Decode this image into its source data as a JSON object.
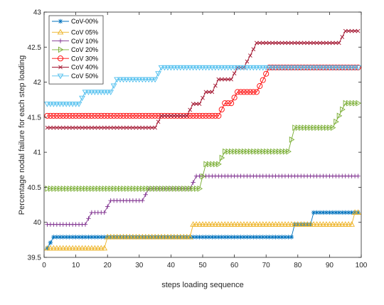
{
  "chart_data": {
    "type": "line",
    "xlabel": "steps loading sequence",
    "ylabel": "Percentage  nodal failure for each step loading",
    "xlim": [
      0,
      100
    ],
    "ylim": [
      39.5,
      43
    ],
    "xticks": [
      "0",
      "10",
      "20",
      "30",
      "40",
      "50",
      "60",
      "70",
      "80",
      "90",
      "100"
    ],
    "yticks": [
      "39.5",
      "40",
      "40.5",
      "41",
      "41.5",
      "42",
      "42.5",
      "43"
    ],
    "grid": false,
    "legend_position": "top-left",
    "series": [
      {
        "name": "CoV-00%",
        "color": "#0072BD",
        "marker": "asterisk",
        "segments": [
          [
            1,
            39.63
          ],
          [
            3,
            39.79
          ],
          [
            78,
            39.79
          ],
          [
            79,
            39.97
          ],
          [
            84,
            39.97
          ],
          [
            85,
            40.14
          ],
          [
            99,
            40.14
          ]
        ]
      },
      {
        "name": "CoV 05%",
        "color": "#EDB120",
        "marker": "triangle-up",
        "segments": [
          [
            1,
            39.63
          ],
          [
            19,
            39.63
          ],
          [
            20,
            39.79
          ],
          [
            46,
            39.79
          ],
          [
            47,
            39.97
          ],
          [
            97,
            39.97
          ],
          [
            98,
            40.14
          ],
          [
            99,
            40.14
          ]
        ]
      },
      {
        "name": "CoV 10%",
        "color": "#7E2F8E",
        "marker": "plus",
        "segments": [
          [
            1,
            39.97
          ],
          [
            13,
            39.97
          ],
          [
            15,
            40.14
          ],
          [
            19,
            40.14
          ],
          [
            21,
            40.31
          ],
          [
            31,
            40.31
          ],
          [
            33,
            40.48
          ],
          [
            46,
            40.48
          ],
          [
            48,
            40.66
          ],
          [
            99,
            40.66
          ]
        ]
      },
      {
        "name": "CoV 20%",
        "color": "#77AC30",
        "marker": "triangle-right",
        "segments": [
          [
            1,
            40.48
          ],
          [
            49,
            40.48
          ],
          [
            51,
            40.83
          ],
          [
            55,
            40.83
          ],
          [
            57,
            41.01
          ],
          [
            77,
            41.01
          ],
          [
            79,
            41.35
          ],
          [
            91,
            41.35
          ],
          [
            93,
            41.52
          ],
          [
            95,
            41.7
          ],
          [
            99,
            41.7
          ]
        ]
      },
      {
        "name": "CoV 30%",
        "color": "#FF0000",
        "marker": "circle",
        "segments": [
          [
            1,
            41.52
          ],
          [
            55,
            41.52
          ],
          [
            57,
            41.7
          ],
          [
            59,
            41.7
          ],
          [
            61,
            41.86
          ],
          [
            67,
            41.86
          ],
          [
            69,
            42.03
          ],
          [
            71,
            42.21
          ],
          [
            99,
            42.21
          ]
        ]
      },
      {
        "name": "CoV 40%",
        "color": "#A2142F",
        "marker": "x",
        "segments": [
          [
            1,
            41.35
          ],
          [
            35,
            41.35
          ],
          [
            37,
            41.52
          ],
          [
            45,
            41.52
          ],
          [
            47,
            41.69
          ],
          [
            49,
            41.69
          ],
          [
            51,
            41.86
          ],
          [
            53,
            41.86
          ],
          [
            55,
            42.04
          ],
          [
            59,
            42.04
          ],
          [
            61,
            42.21
          ],
          [
            63,
            42.21
          ],
          [
            65,
            42.38
          ],
          [
            67,
            42.56
          ],
          [
            93,
            42.56
          ],
          [
            95,
            42.73
          ],
          [
            99,
            42.73
          ]
        ]
      },
      {
        "name": "CoV 50%",
        "color": "#4DBEEE",
        "marker": "triangle-down",
        "segments": [
          [
            1,
            41.69
          ],
          [
            11,
            41.69
          ],
          [
            13,
            41.86
          ],
          [
            21,
            41.86
          ],
          [
            23,
            42.04
          ],
          [
            35,
            42.04
          ],
          [
            37,
            42.21
          ],
          [
            99,
            42.21
          ]
        ]
      }
    ]
  }
}
